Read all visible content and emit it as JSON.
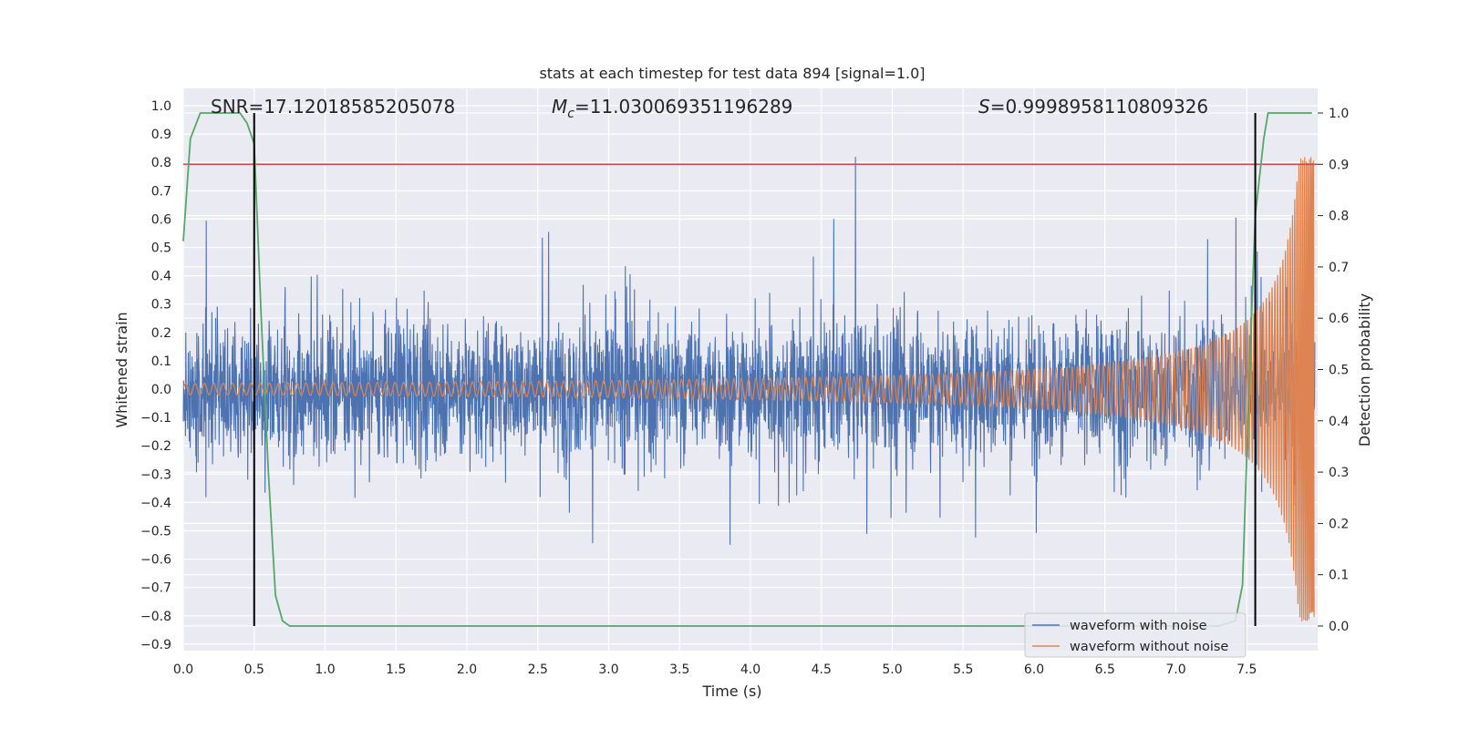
{
  "chart_data": {
    "type": "line",
    "title": "stats at each timestep for test data 894 [signal=1.0]",
    "xlabel": "Time (s)",
    "ylabel": "Whitened strain",
    "y2label": "Detection probability",
    "xlim": [
      0.0,
      8.0
    ],
    "ylim": [
      -0.95,
      1.08
    ],
    "y2lim": [
      -0.05,
      1.05
    ],
    "xticks": [
      "0.0",
      "0.5",
      "1.0",
      "1.5",
      "2.0",
      "2.5",
      "3.0",
      "3.5",
      "4.0",
      "4.5",
      "5.0",
      "5.5",
      "6.0",
      "6.5",
      "7.0",
      "7.5"
    ],
    "yticks": [
      "1.0",
      "0.9",
      "0.8",
      "0.7",
      "0.6",
      "0.5",
      "0.4",
      "0.3",
      "0.2",
      "0.1",
      "0.0",
      "-0.1",
      "-0.2",
      "-0.3",
      "-0.4",
      "-0.5",
      "-0.6",
      "-0.7",
      "-0.8",
      "-0.9"
    ],
    "y2ticks": [
      "1.0",
      "0.9",
      "0.8",
      "0.7",
      "0.6",
      "0.5",
      "0.4",
      "0.3",
      "0.2",
      "0.1",
      "0.0"
    ],
    "grid": true,
    "legend_placement": "lower-right",
    "annotations": {
      "snr": "SNR=17.12018585205078",
      "mc_symbol": "M",
      "mc_sub": "c",
      "mc_value": "=11.030069351196289",
      "s_symbol": "S",
      "s_value": "=0.9998958110809326"
    },
    "threshold_probability": 0.9,
    "vertical_markers_s": [
      0.5,
      7.56
    ],
    "series": [
      {
        "name": "waveform with noise",
        "color": "#4c72b0",
        "noise_amplitude_range": [
          -0.86,
          0.82
        ]
      },
      {
        "name": "waveform without noise",
        "color": "#dd8452",
        "chirp_start_amplitude": 0.02,
        "chirp_end_amplitude": 0.82,
        "chirp_start_freq_hz": 15
      },
      {
        "name": "detection probability",
        "color": "#55a868",
        "x": [
          0.0,
          0.05,
          0.12,
          0.25,
          0.4,
          0.45,
          0.5,
          0.55,
          0.6,
          0.65,
          0.7,
          0.75,
          8.0
        ],
        "y": [
          0.75,
          0.95,
          1.0,
          1.0,
          1.0,
          0.98,
          0.94,
          0.6,
          0.3,
          0.06,
          0.01,
          0.0,
          0.0
        ],
        "x_end": [
          7.3,
          7.42,
          7.47,
          7.52,
          7.56,
          7.62,
          7.65,
          7.7,
          7.96
        ],
        "y_end": [
          0.0,
          0.01,
          0.08,
          0.5,
          0.8,
          0.95,
          1.0,
          1.0,
          1.0
        ]
      }
    ],
    "colors": {
      "plot_bg": "#eaeaf2",
      "grid": "#ffffff",
      "threshold": "#c44e52",
      "marker": "#000000"
    }
  }
}
